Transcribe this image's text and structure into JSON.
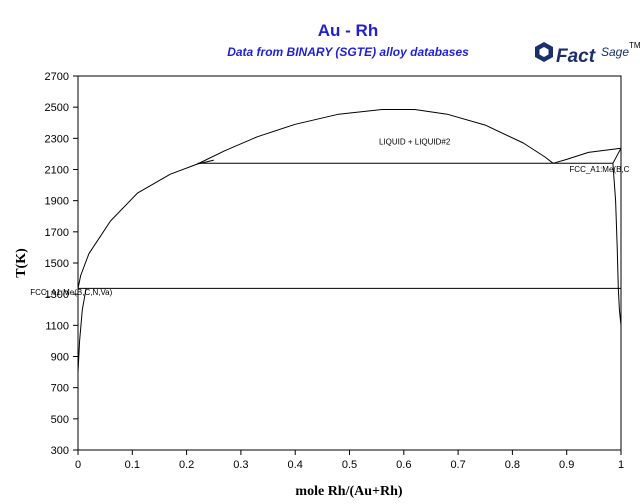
{
  "chart_data": {
    "type": "line",
    "title": "Au - Rh",
    "subtitle": "Data from BINARY (SGTE) alloy databases",
    "xlabel": "mole Rh/(Au+Rh)",
    "ylabel": "T(K)",
    "xlim": [
      0,
      1
    ],
    "ylim": [
      300,
      2700
    ],
    "x_ticks": [
      "0",
      "0.1",
      "0.2",
      "0.3",
      "0.4",
      "0.5",
      "0.6",
      "0.7",
      "0.8",
      "0.9",
      "1"
    ],
    "y_ticks": [
      "300",
      "500",
      "700",
      "900",
      "1100",
      "1300",
      "1500",
      "1700",
      "1900",
      "2100",
      "2300",
      "2500",
      "2700"
    ],
    "grid": false,
    "series": [
      {
        "x": [
          0.0,
          0.005,
          0.02,
          0.06,
          0.11,
          0.17,
          0.22,
          0.25
        ],
        "y": [
          1337,
          1420,
          1560,
          1770,
          1950,
          2070,
          2135,
          2160
        ]
      },
      {
        "x": [
          0.22,
          0.27,
          0.33,
          0.4,
          0.48,
          0.56,
          0.62,
          0.68,
          0.75,
          0.82,
          0.86,
          0.875
        ],
        "y": [
          2135,
          2220,
          2310,
          2390,
          2455,
          2485,
          2485,
          2455,
          2385,
          2270,
          2180,
          2140
        ]
      },
      {
        "x": [
          0.875,
          0.9,
          0.94,
          1.0
        ],
        "y": [
          2140,
          2165,
          2210,
          2237
        ]
      },
      {
        "x": [
          0.0,
          0.003,
          0.008,
          0.015
        ],
        "y": [
          800,
          1000,
          1200,
          1337
        ]
      },
      {
        "x": [
          0.985,
          0.99,
          0.993,
          0.995,
          0.997,
          1.0
        ],
        "y": [
          2140,
          1900,
          1600,
          1337,
          1200,
          1100
        ]
      },
      {
        "x": [
          0.985,
          1.0
        ],
        "y": [
          2140,
          2237
        ]
      },
      {
        "x": [
          0.22,
          0.985
        ],
        "y": [
          2140,
          2140
        ]
      },
      {
        "x": [
          0.0,
          1.0
        ],
        "y": [
          1337,
          1337
        ]
      }
    ],
    "annotations": [
      {
        "text": "LIQUID + LIQUID#2",
        "x": 0.62,
        "y": 2260
      },
      {
        "text": "FCC_A1:Me(B,C",
        "x": 0.905,
        "y": 2085
      },
      {
        "text": "FCC_A1:Me(B,C,N,Va)",
        "x": -0.088,
        "y": 1295
      }
    ],
    "logo": {
      "text1": "Fact",
      "text2": "Sage",
      "mark": "TM"
    }
  }
}
